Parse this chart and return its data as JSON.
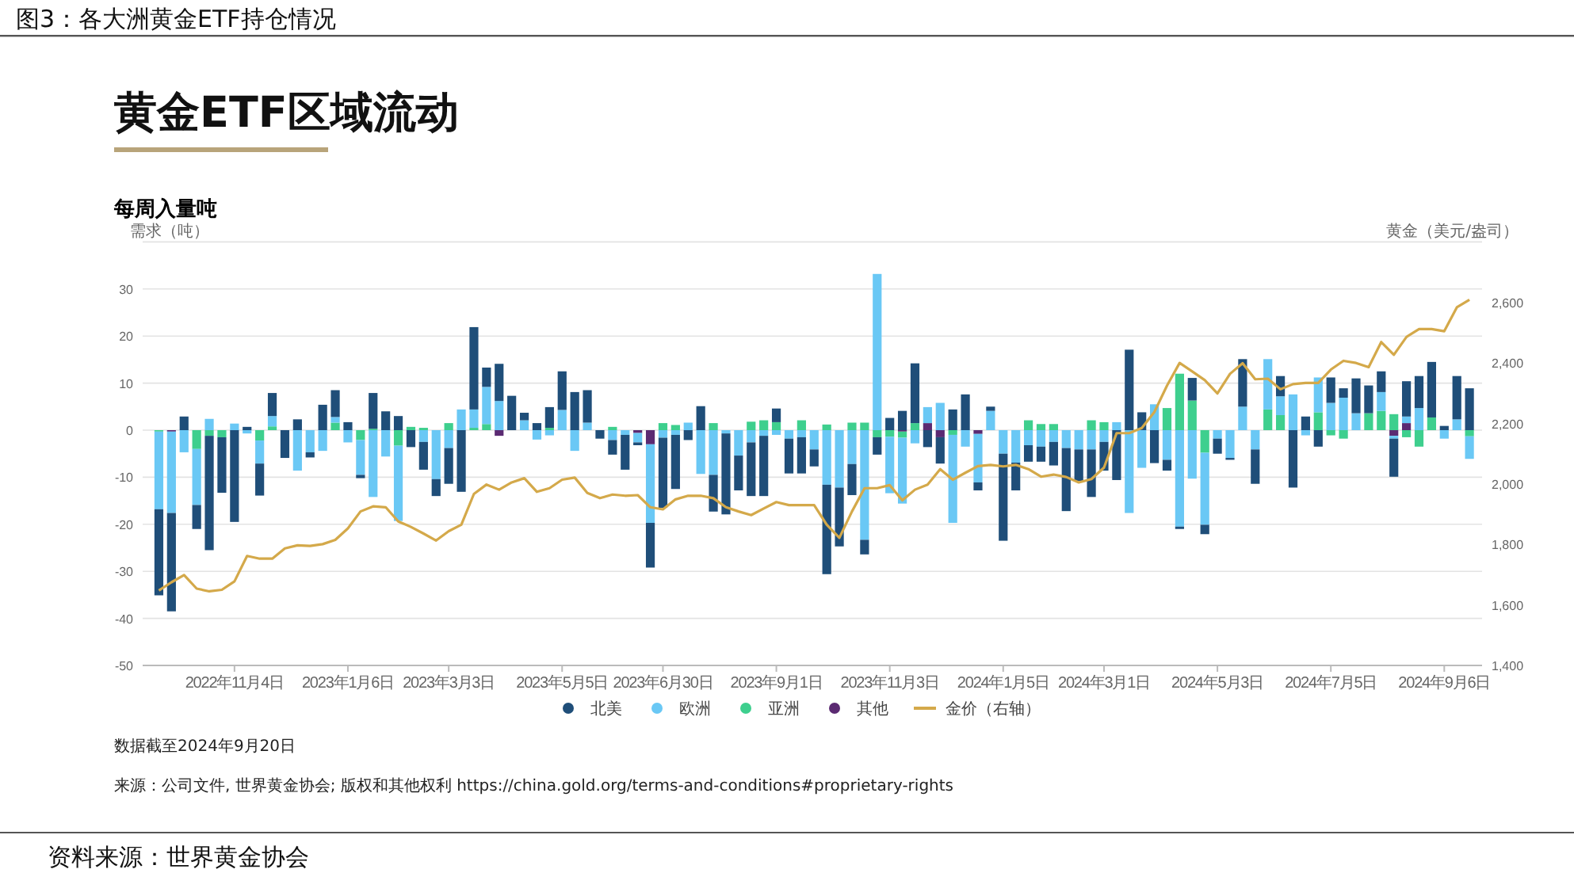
{
  "chart_data": {
    "type": "bar",
    "stacked": true,
    "title": "图3：各大洲黄金ETF持仓情况",
    "subtitle": "黄金ETF区域流动",
    "ylabel": "需求（吨）",
    "y2label": "黄金（美元/盎司）",
    "annotations": [
      "每周入量吨",
      "数据截至2024年9月20日",
      "来源：公司文件, 世界黄金协会; 版权和其他权利 https://china.gold.org/terms-and-conditions#proprietary-rights",
      "资料来源：世界黄金协会"
    ],
    "x": [
      "2022-09-23",
      "2022-09-30",
      "2022-10-07",
      "2022-10-14",
      "2022-10-21",
      "2022-10-28",
      "2022-11-04",
      "2022-11-11",
      "2022-11-18",
      "2022-11-25",
      "2022-12-02",
      "2022-12-09",
      "2022-12-16",
      "2022-12-23",
      "2022-12-30",
      "2023-01-06",
      "2023-01-13",
      "2023-01-20",
      "2023-01-27",
      "2023-02-03",
      "2023-02-10",
      "2023-02-17",
      "2023-02-24",
      "2023-03-03",
      "2023-03-10",
      "2023-03-17",
      "2023-03-24",
      "2023-03-31",
      "2023-04-07",
      "2023-04-14",
      "2023-04-21",
      "2023-04-28",
      "2023-05-05",
      "2023-05-12",
      "2023-05-19",
      "2023-05-26",
      "2023-06-02",
      "2023-06-09",
      "2023-06-16",
      "2023-06-23",
      "2023-06-30",
      "2023-07-07",
      "2023-07-14",
      "2023-07-21",
      "2023-07-28",
      "2023-08-04",
      "2023-08-11",
      "2023-08-18",
      "2023-08-25",
      "2023-09-01",
      "2023-09-08",
      "2023-09-15",
      "2023-09-22",
      "2023-09-29",
      "2023-10-06",
      "2023-10-13",
      "2023-10-20",
      "2023-10-27",
      "2023-11-03",
      "2023-11-10",
      "2023-11-17",
      "2023-11-24",
      "2023-12-01",
      "2023-12-08",
      "2023-12-15",
      "2023-12-22",
      "2023-12-29",
      "2024-01-05",
      "2024-01-12",
      "2024-01-19",
      "2024-01-26",
      "2024-02-02",
      "2024-02-09",
      "2024-02-16",
      "2024-02-23",
      "2024-03-01",
      "2024-03-08",
      "2024-03-15",
      "2024-03-22",
      "2024-03-29",
      "2024-04-05",
      "2024-04-12",
      "2024-04-19",
      "2024-04-26",
      "2024-05-03",
      "2024-05-10",
      "2024-05-17",
      "2024-05-24",
      "2024-05-31",
      "2024-06-07",
      "2024-06-14",
      "2024-06-21",
      "2024-06-28",
      "2024-07-05",
      "2024-07-12",
      "2024-07-19",
      "2024-07-26",
      "2024-08-02",
      "2024-08-09",
      "2024-08-16",
      "2024-08-23",
      "2024-08-30",
      "2024-09-06",
      "2024-09-13",
      "2024-09-20"
    ],
    "xlim": [
      "2022-09-14",
      "2024-09-27"
    ],
    "xticks": [
      {
        "value": "2022-11-04",
        "label": "2022年11月4日"
      },
      {
        "value": "2023-01-06",
        "label": "2023年1月6日"
      },
      {
        "value": "2023-03-03",
        "label": "2023年3月3日"
      },
      {
        "value": "2023-05-05",
        "label": "2023年5月5日"
      },
      {
        "value": "2023-06-30",
        "label": "2023年6月30日"
      },
      {
        "value": "2023-09-01",
        "label": "2023年9月1日"
      },
      {
        "value": "2023-11-03",
        "label": "2023年11月3日"
      },
      {
        "value": "2024-01-05",
        "label": "2024年1月5日"
      },
      {
        "value": "2024-03-01",
        "label": "2024年3月1日"
      },
      {
        "value": "2024-05-03",
        "label": "2024年5月3日"
      },
      {
        "value": "2024-07-05",
        "label": "2024年7月5日"
      },
      {
        "value": "2024-09-06",
        "label": "2024年9月6日"
      }
    ],
    "ylim": [
      -50,
      40
    ],
    "yticks": [
      -50,
      -40,
      -30,
      -20,
      -10,
      0,
      10,
      20,
      30,
      {
        "value": 40,
        "label": null
      }
    ],
    "y2lim": [
      1400,
      2800
    ],
    "y2ticks": [
      {
        "value": 1400,
        "label": "1,400"
      },
      {
        "value": 1600,
        "label": "1,600"
      },
      {
        "value": 1800,
        "label": "1,800"
      },
      {
        "value": 2000,
        "label": "2,000"
      },
      {
        "value": 2200,
        "label": "2,200"
      },
      {
        "value": 2400,
        "label": "2,400"
      },
      {
        "value": 2600,
        "label": "2,600"
      }
    ],
    "grid": "y",
    "legend": "bottom",
    "series": [
      {
        "name": "其他",
        "color": "#5b2a72",
        "values": [
          null,
          -0.3,
          null,
          null,
          null,
          null,
          null,
          null,
          null,
          null,
          null,
          null,
          null,
          null,
          null,
          null,
          null,
          null,
          null,
          null,
          null,
          null,
          null,
          null,
          null,
          null,
          null,
          -1.2,
          null,
          null,
          null,
          null,
          null,
          null,
          null,
          null,
          null,
          null,
          -0.6,
          -3,
          null,
          null,
          null,
          null,
          null,
          null,
          null,
          null,
          null,
          null,
          null,
          null,
          null,
          null,
          null,
          null,
          null,
          null,
          null,
          -0.3,
          null,
          1.5,
          -1.5,
          null,
          null,
          -0.8,
          null,
          null,
          null,
          null,
          null,
          null,
          null,
          null,
          null,
          null,
          null,
          null,
          null,
          null,
          null,
          null,
          null,
          null,
          null,
          null,
          null,
          null,
          null,
          null,
          null,
          null,
          null,
          null,
          null,
          null,
          null,
          null,
          -1.2,
          1.5,
          null,
          null,
          null,
          null,
          null
        ]
      },
      {
        "name": "亚洲",
        "color": "#3ecf8e",
        "values": [
          -0.3,
          null,
          null,
          -4,
          -1.2,
          -1.5,
          null,
          null,
          -2.2,
          0.8,
          null,
          null,
          null,
          null,
          1.6,
          null,
          -2.1,
          0.3,
          null,
          -3.3,
          0.7,
          0.5,
          null,
          1.5,
          null,
          0.5,
          1.3,
          null,
          null,
          null,
          null,
          0.5,
          null,
          null,
          null,
          null,
          0.7,
          null,
          null,
          null,
          1.5,
          1.1,
          null,
          null,
          1.5,
          null,
          null,
          1.8,
          2.1,
          1.7,
          null,
          2.1,
          null,
          1.2,
          null,
          1.6,
          1.6,
          -1.5,
          -1.4,
          -1.3,
          1.5,
          null,
          null,
          -1,
          null,
          null,
          null,
          null,
          null,
          2.1,
          1.3,
          1.3,
          null,
          null,
          2.1,
          1.7,
          null,
          null,
          null,
          null,
          4.7,
          12,
          6.3,
          -4.8,
          null,
          null,
          null,
          null,
          4.4,
          3.2,
          null,
          null,
          3.8,
          -1.1,
          -1.8,
          null,
          3.6,
          4.1,
          3.4,
          -1.5,
          -3.5,
          2.7,
          null,
          null,
          -1.3
        ]
      },
      {
        "name": "欧洲",
        "color": "#6ac8f5",
        "values": [
          -16.5,
          -17.3,
          -4.7,
          -11.9,
          2.4,
          null,
          1.4,
          -0.7,
          -4.9,
          2.2,
          null,
          -8.6,
          -4.7,
          -4.4,
          1.2,
          -2.6,
          -7.4,
          -14.2,
          -5.6,
          -16,
          null,
          -2.5,
          -10.4,
          -3.8,
          4.4,
          3.9,
          7.9,
          6.2,
          null,
          2.1,
          -2,
          -1.1,
          4.3,
          -4.4,
          1.6,
          null,
          -2.1,
          -1,
          -2,
          -16.7,
          -1.6,
          -1,
          1.6,
          -9.3,
          -9.5,
          -0.7,
          -5.4,
          -2.6,
          -1.2,
          -1,
          -1.8,
          -1.5,
          -4.1,
          -11.6,
          -12.2,
          -7.2,
          -23.3,
          33.2,
          -12,
          -14,
          -2.8,
          3.4,
          5.8,
          -18.7,
          -3.5,
          -10.3,
          4.1,
          -5,
          -6.9,
          -3.2,
          -3.5,
          -2.5,
          -3.8,
          -4.1,
          -4.1,
          -2.5,
          1.7,
          -17.6,
          -8,
          5.5,
          -6.3,
          -20.5,
          -10.3,
          -15.3,
          -1.8,
          -5.9,
          5,
          -4.1,
          10.7,
          4,
          7.6,
          -1.1,
          7.4,
          5.8,
          6.9,
          3.6,
          null,
          4,
          -0.6,
          1.4,
          4.7,
          null,
          -1.8,
          2.3,
          -4.8
        ]
      },
      {
        "name": "北美",
        "color": "#1f4e79",
        "values": [
          -18.3,
          -20.9,
          2.9,
          -5.1,
          -24.3,
          -11.8,
          -19.5,
          0.7,
          -6.8,
          4.9,
          -5.9,
          2.3,
          -1.1,
          5.4,
          5.7,
          1.7,
          -0.7,
          7.6,
          4,
          3,
          -3.6,
          -5.9,
          -3.6,
          -7.6,
          -13.1,
          17.5,
          4.1,
          7.9,
          7.3,
          1.6,
          1.5,
          4.4,
          8.2,
          8.1,
          6.9,
          -1.8,
          -3.1,
          -7.4,
          -0.6,
          -9.5,
          -14.9,
          -11.5,
          -2.1,
          5.1,
          -7.8,
          -17.2,
          -7.4,
          -11.4,
          -12.8,
          2.9,
          -7.4,
          -7.7,
          -3.6,
          -19,
          -12.5,
          -6.6,
          -3.1,
          -3.7,
          2.6,
          4.1,
          12.7,
          -3.6,
          -5.6,
          4.4,
          7.6,
          -1.7,
          0.9,
          -18.5,
          -5.9,
          -3.5,
          -3.2,
          -5,
          -13.4,
          -6.7,
          -10.1,
          -6.1,
          -10.6,
          17.1,
          3.8,
          -7,
          -2.3,
          -0.5,
          4.8,
          -2,
          -3.2,
          -0.4,
          10.1,
          -7.3,
          null,
          4.3,
          -12.2,
          2.9,
          -3.5,
          5.4,
          2,
          7.4,
          5.9,
          4.4,
          -8.1,
          7.5,
          6.8,
          11.8,
          0.9,
          9.2,
          8.9
        ]
      },
      {
        "name": "金价（右轴）",
        "type": "line",
        "axis": "y2",
        "color": "#d4a94a",
        "values": [
          1648,
          1675,
          1699,
          1654,
          1645,
          1650,
          1678,
          1762,
          1753,
          1753,
          1787,
          1797,
          1795,
          1801,
          1815,
          1853,
          1909,
          1926,
          1923,
          1876,
          1858,
          1836,
          1813,
          1844,
          1865,
          1967,
          1998,
          1981,
          2005,
          2019,
          1974,
          1986,
          2014,
          2021,
          1970,
          1953,
          1965,
          1961,
          1963,
          1923,
          1916,
          1949,
          1961,
          1961,
          1953,
          1923,
          1909,
          1897,
          1919,
          1940,
          1930,
          1930,
          1930,
          1865,
          1822,
          1909,
          1986,
          1986,
          1996,
          1946,
          1981,
          1998,
          2049,
          2014,
          2037,
          2059,
          2063,
          2058,
          2063,
          2049,
          2024,
          2031,
          2023,
          2005,
          2016,
          2054,
          2168,
          2168,
          2185,
          2238,
          2325,
          2400,
          2372,
          2343,
          2299,
          2364,
          2399,
          2346,
          2348,
          2313,
          2330,
          2334,
          2334,
          2378,
          2407,
          2400,
          2386,
          2469,
          2427,
          2486,
          2512,
          2512,
          2505,
          2584,
          2609
        ]
      }
    ]
  }
}
